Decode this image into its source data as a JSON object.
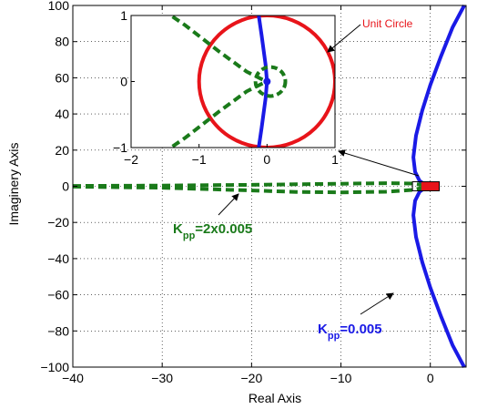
{
  "chart_data": [
    {
      "type": "line",
      "xlabel": "Real Axis",
      "ylabel": "Imaginery Axis",
      "xlim": [
        -40,
        4
      ],
      "ylim": [
        -100,
        100
      ],
      "x_ticks": [
        -40,
        -30,
        -20,
        -10,
        0
      ],
      "y_ticks": [
        -100,
        -80,
        -60,
        -40,
        -20,
        0,
        20,
        40,
        60,
        80,
        100
      ],
      "x_tick_labels": [
        "−40",
        "−30",
        "−20",
        "−10",
        "0"
      ],
      "y_tick_labels": [
        "−100",
        "−80",
        "−60",
        "−40",
        "−20",
        "0",
        "20",
        "40",
        "60",
        "80",
        "100"
      ],
      "grid": true,
      "colors": {
        "blue": "#1a1ae6",
        "green": "#1a7a1a",
        "red": "#e8141a"
      },
      "series": [
        {
          "id": "blue-locus",
          "style": "solid",
          "points": [
            [
              3.8,
              100
            ],
            [
              2.5,
              88
            ],
            [
              1.2,
              72
            ],
            [
              0.0,
              56
            ],
            [
              -0.9,
              42
            ],
            [
              -1.6,
              28
            ],
            [
              -1.9,
              16
            ],
            [
              -1.7,
              8
            ],
            [
              -1.2,
              3
            ],
            [
              -0.5,
              0.5
            ],
            [
              0.0,
              0
            ],
            [
              -0.5,
              -0.5
            ],
            [
              -1.2,
              -3
            ],
            [
              -1.7,
              -8
            ],
            [
              -1.9,
              -16
            ],
            [
              -1.6,
              -28
            ],
            [
              -0.9,
              -42
            ],
            [
              0.0,
              -56
            ],
            [
              1.2,
              -72
            ],
            [
              2.5,
              -88
            ],
            [
              3.8,
              -100
            ]
          ]
        },
        {
          "id": "green-upper",
          "style": "dashed",
          "points": [
            [
              -40,
              0.2
            ],
            [
              -30,
              0.4
            ],
            [
              -20,
              0.8
            ],
            [
              -15,
              1.1
            ],
            [
              -10,
              1.4
            ],
            [
              -5,
              1.7
            ],
            [
              -2,
              1.5
            ],
            [
              -1,
              0.8
            ],
            [
              0,
              0.2
            ]
          ]
        },
        {
          "id": "green-lower",
          "style": "dashed",
          "points": [
            [
              -40,
              -0.2
            ],
            [
              -30,
              -0.8
            ],
            [
              -20,
              -2.3
            ],
            [
              -15,
              -3.1
            ],
            [
              -10,
              -3.4
            ],
            [
              -5,
              -3.0
            ],
            [
              -2,
              -2.0
            ],
            [
              -1,
              -1.0
            ],
            [
              0,
              -0.2
            ]
          ]
        },
        {
          "id": "red-unit",
          "style": "solid",
          "points": [
            [
              -1,
              0
            ],
            [
              1,
              0
            ]
          ]
        }
      ],
      "annotations": {
        "unit_circle": "Unit Circle",
        "kpp_green_main": "K",
        "kpp_green_sub": "pp",
        "kpp_green_rest": "=2x0.005",
        "kpp_blue_main": "K",
        "kpp_blue_sub": "pp",
        "kpp_blue_rest": "=0.005"
      }
    },
    {
      "type": "line",
      "role": "inset",
      "xlim": [
        -2,
        1
      ],
      "ylim": [
        -1,
        1
      ],
      "x_ticks": [
        -2,
        -1,
        0,
        1
      ],
      "y_ticks": [
        -1,
        0,
        1
      ],
      "x_tick_labels": [
        "−2",
        "−1",
        "0",
        "1"
      ],
      "y_tick_labels": [
        "−1",
        "0",
        "1"
      ],
      "series": [
        {
          "id": "unit-circle",
          "style": "solid",
          "center": [
            0,
            0
          ],
          "radius": 1
        },
        {
          "id": "blue-inset",
          "style": "solid",
          "points": [
            [
              -0.15,
              1.2
            ],
            [
              -0.08,
              0.7
            ],
            [
              -0.02,
              0.25
            ],
            [
              0.0,
              0.0
            ],
            [
              -0.02,
              -0.25
            ],
            [
              -0.08,
              -0.7
            ],
            [
              -0.15,
              -1.2
            ]
          ]
        },
        {
          "id": "green-inset-upper",
          "style": "dashed",
          "points": [
            [
              -1.7,
              1.2
            ],
            [
              -1.2,
              0.85
            ],
            [
              -0.7,
              0.45
            ],
            [
              -0.3,
              0.15
            ],
            [
              -0.05,
              0.02
            ]
          ]
        },
        {
          "id": "green-inset-lower",
          "style": "dashed",
          "points": [
            [
              -1.7,
              -1.2
            ],
            [
              -1.2,
              -0.85
            ],
            [
              -0.7,
              -0.45
            ],
            [
              -0.3,
              -0.15
            ],
            [
              -0.05,
              -0.02
            ]
          ]
        },
        {
          "id": "green-loop",
          "style": "dashed",
          "center": [
            0.05,
            0
          ],
          "radius": 0.22
        }
      ]
    }
  ]
}
